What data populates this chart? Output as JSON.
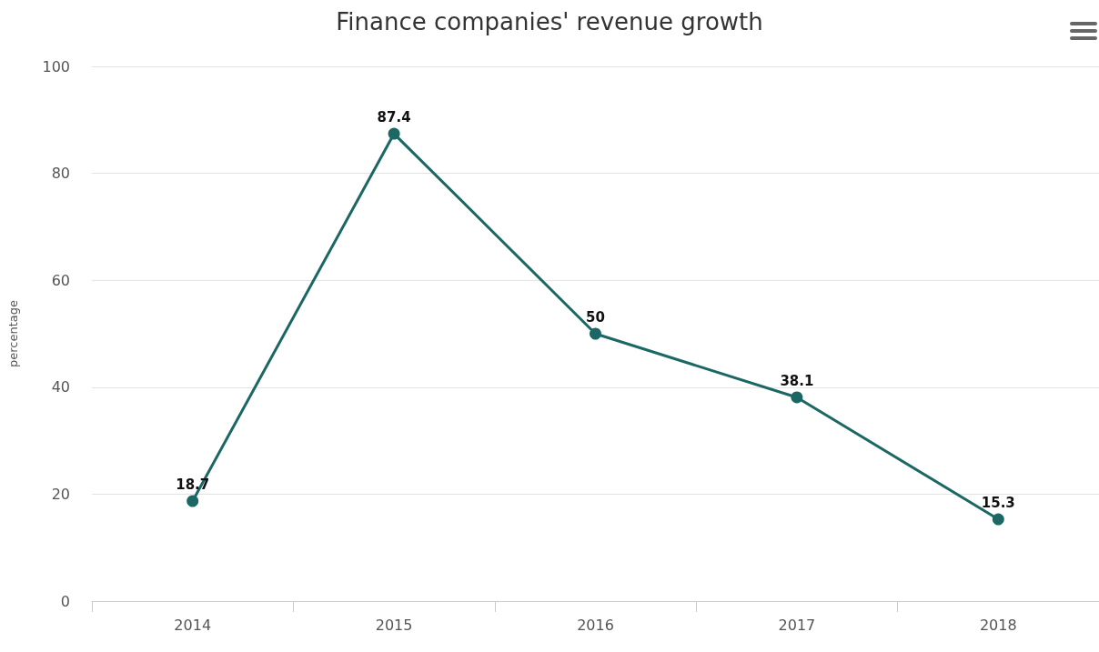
{
  "chart_data": {
    "type": "line",
    "title": "Finance companies' revenue growth",
    "ylabel": "percentage",
    "categories": [
      "2014",
      "2015",
      "2016",
      "2017",
      "2018"
    ],
    "series": [
      {
        "color": "#1b6764",
        "values": [
          18.7,
          87.4,
          50,
          38.1,
          15.3
        ]
      }
    ],
    "ylim": [
      0,
      100
    ],
    "yticks": [
      0,
      20,
      40,
      60,
      80,
      100
    ],
    "grid": "y",
    "marker": "circle",
    "line_style": "solid",
    "data_labels": true
  }
}
